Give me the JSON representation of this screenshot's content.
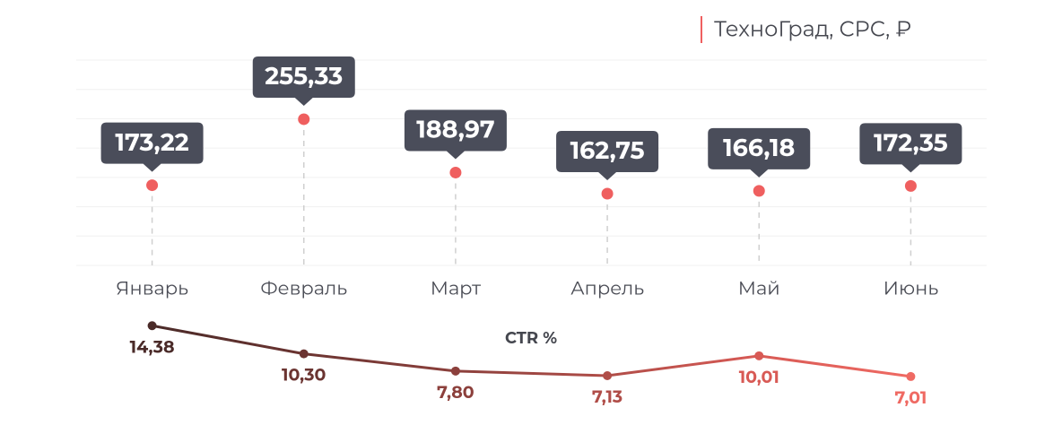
{
  "chart_data": [
    {
      "type": "dot",
      "categories": [
        "Январь",
        "Февраль",
        "Март",
        "Апрель",
        "Май",
        "Июнь"
      ],
      "series": [
        {
          "name": "ТехноГрад, CPC, ₽",
          "color": "#ef5f5f",
          "values": [
            173.22,
            255.33,
            188.97,
            162.75,
            166.18,
            172.35
          ],
          "value_labels": [
            "173,22",
            "255,33",
            "188,97",
            "162,75",
            "166,18",
            "172,35"
          ]
        }
      ],
      "ylim": [
        73.5,
        328.9
      ],
      "grid": true
    },
    {
      "type": "line",
      "title": "CTR %",
      "values": [
        14.38,
        10.3,
        7.8,
        7.13,
        10.01,
        7.01
      ],
      "value_labels": [
        "14,38",
        "10,30",
        "7,80",
        "7,13",
        "10,01",
        "7,01"
      ],
      "colors": [
        "#4a2a28",
        "#6b3431",
        "#8c403c",
        "#b04d48",
        "#d85a55",
        "#ef6a63"
      ],
      "ylim": [
        4.4,
        17.4
      ]
    }
  ]
}
